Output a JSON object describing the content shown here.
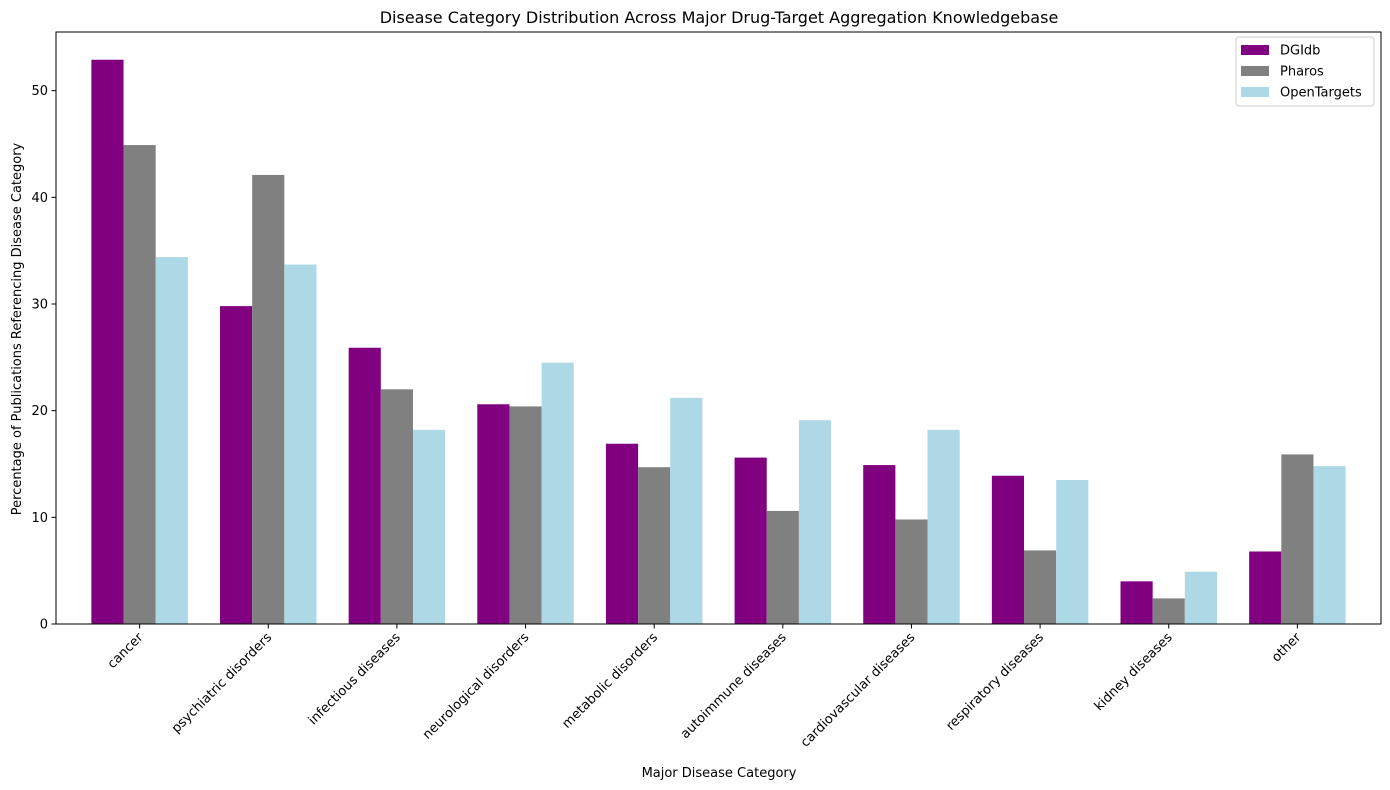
{
  "chart_data": {
    "type": "bar",
    "title": "Disease Category Distribution Across Major Drug-Target Aggregation Knowledgebase",
    "xlabel": "Major Disease Category",
    "ylabel": "Percentage of Publications Referencing Disease Category",
    "categories": [
      "cancer",
      "psychiatric disorders",
      "infectious diseases",
      "neurological disorders",
      "metabolic disorders",
      "autoimmune diseases",
      "cardiovascular diseases",
      "respiratory diseases",
      "kidney diseases",
      "other"
    ],
    "series": [
      {
        "name": "DGIdb",
        "color": "#800080",
        "values": [
          52.9,
          29.8,
          25.9,
          20.6,
          16.9,
          15.6,
          14.9,
          13.9,
          4.0,
          6.8
        ]
      },
      {
        "name": "Pharos",
        "color": "#808080",
        "values": [
          44.9,
          42.1,
          22.0,
          20.4,
          14.7,
          10.6,
          9.8,
          6.9,
          2.4,
          15.9
        ]
      },
      {
        "name": "OpenTargets",
        "color": "#add8e6",
        "values": [
          34.4,
          33.7,
          18.2,
          24.5,
          21.2,
          19.1,
          18.2,
          13.5,
          4.9,
          14.8
        ]
      }
    ],
    "ylim": [
      0,
      55.5
    ],
    "yticks": [
      0,
      10,
      20,
      30,
      40,
      50
    ],
    "legend_position": "top-right",
    "grid": false
  }
}
